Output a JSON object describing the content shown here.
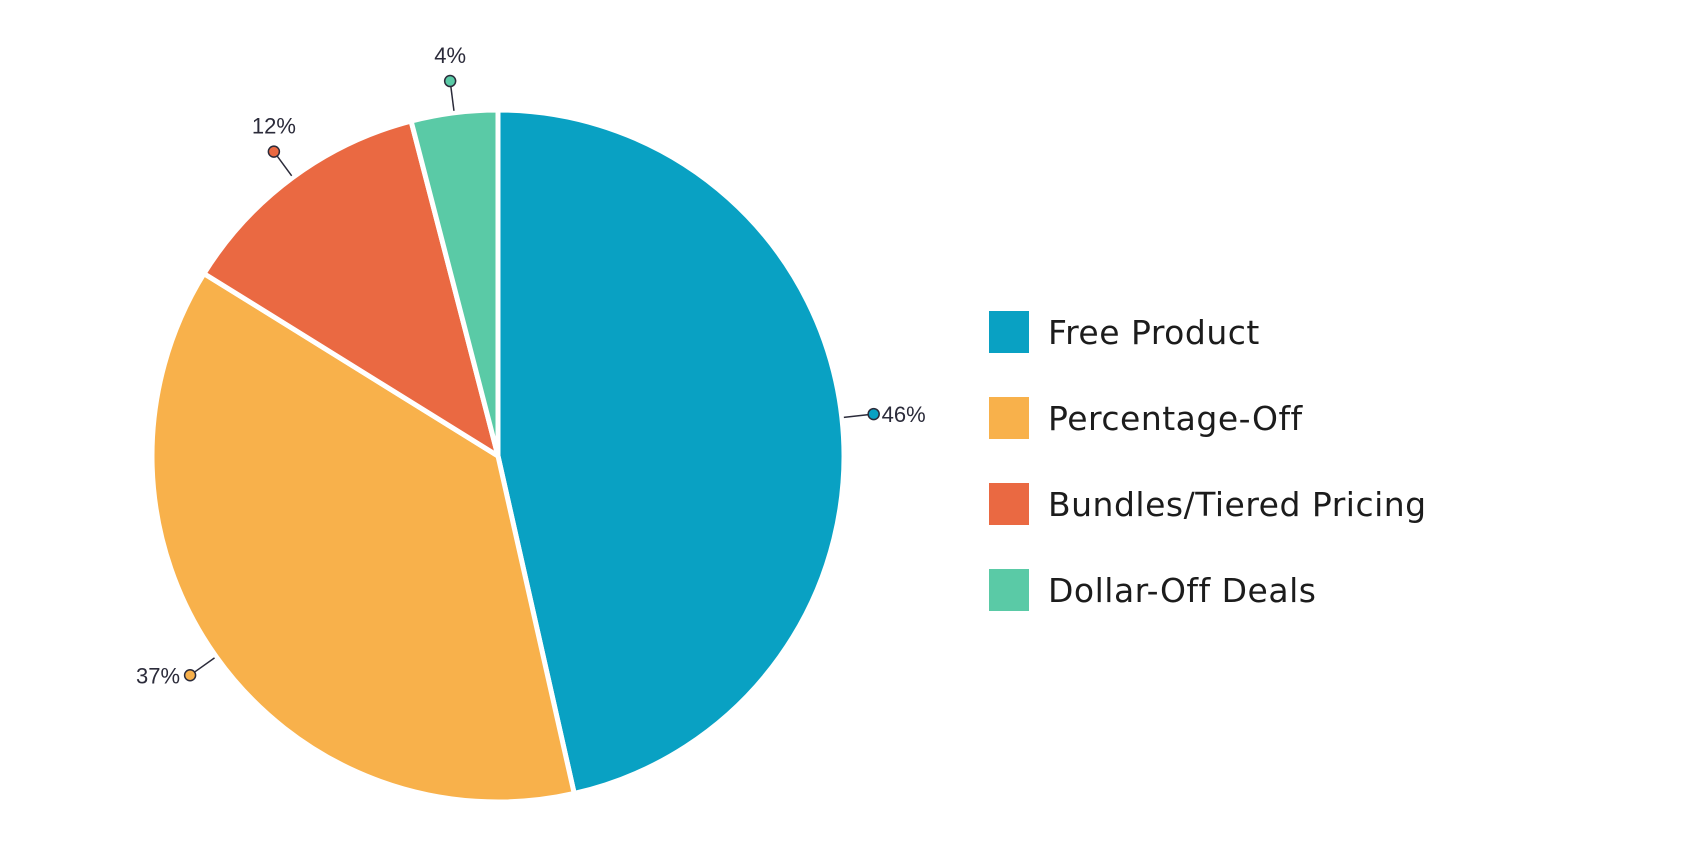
{
  "chart_data": {
    "type": "pie",
    "start": "top",
    "direction": "clockwise",
    "legend_position": "right",
    "slices": [
      {
        "name": "Free Product",
        "value": 46,
        "label": "46%",
        "color": "#09a1c3"
      },
      {
        "name": "Percentage-Off",
        "value": 37,
        "label": "37%",
        "color": "#f8b14b"
      },
      {
        "name": "Bundles/Tiered Pricing",
        "value": 12,
        "label": "12%",
        "color": "#ea6942"
      },
      {
        "name": "Dollar-Off Deals",
        "value": 4,
        "label": "4%",
        "color": "#5acaa6"
      }
    ]
  }
}
